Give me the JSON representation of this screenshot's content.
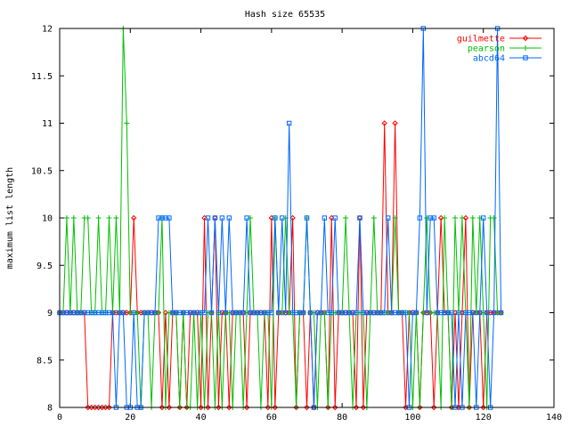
{
  "chart_data": {
    "type": "line",
    "title": "Hash size 65535",
    "xlabel": "",
    "ylabel": "maximum list length",
    "xlim": [
      0,
      140
    ],
    "ylim": [
      8,
      12
    ],
    "xticks": [
      0,
      20,
      40,
      60,
      80,
      100,
      120,
      140
    ],
    "yticks": [
      8,
      8.5,
      9,
      9.5,
      10,
      10.5,
      11,
      11.5,
      12
    ],
    "xtick_labels": [
      "0",
      "20",
      "40",
      "60",
      "80",
      "100",
      "120",
      "140"
    ],
    "ytick_labels": [
      "8",
      "8.5",
      "9",
      "9.5",
      "10",
      "10.5",
      "11",
      "11.5",
      "12"
    ],
    "grid": false,
    "legend_position": "top-right",
    "series": [
      {
        "name": "guilmette",
        "color": "#ff0000",
        "marker": "diamond",
        "values": [
          9,
          9,
          9,
          9,
          9,
          9,
          9,
          9,
          8,
          8,
          8,
          8,
          8,
          8,
          8,
          9,
          9,
          9,
          9,
          9,
          9,
          10,
          9,
          9,
          9,
          9,
          9,
          9,
          9,
          8,
          9,
          8,
          9,
          9,
          8,
          9,
          8,
          9,
          9,
          9,
          8,
          10,
          8,
          9,
          10,
          8,
          9,
          9,
          8,
          9,
          9,
          9,
          9,
          8,
          9,
          9,
          9,
          9,
          9,
          8,
          10,
          8,
          9,
          9,
          9,
          9,
          10,
          8,
          9,
          9,
          8,
          9,
          8,
          9,
          9,
          9,
          8,
          10,
          8,
          9,
          9,
          9,
          9,
          9,
          8,
          10,
          8,
          9,
          9,
          9,
          9,
          9,
          11,
          9,
          9,
          11,
          9,
          9,
          8,
          9,
          9,
          9,
          8,
          9,
          9,
          9,
          8,
          9,
          10,
          9,
          9,
          8,
          9,
          8,
          9,
          10,
          8,
          9,
          9,
          9,
          8,
          9,
          9,
          9,
          9,
          9
        ]
      },
      {
        "name": "pearson",
        "color": "#00c000",
        "marker": "plus",
        "values": [
          9,
          9,
          10,
          9,
          10,
          9,
          9,
          10,
          10,
          9,
          9,
          10,
          9,
          9,
          10,
          9,
          10,
          9,
          12,
          11,
          9,
          9,
          9,
          8,
          9,
          9,
          8,
          9,
          9,
          10,
          8,
          9,
          9,
          9,
          8,
          9,
          8,
          8,
          9,
          8,
          9,
          8,
          9,
          9,
          8,
          9,
          8,
          9,
          9,
          8,
          9,
          9,
          8,
          9,
          10,
          9,
          9,
          8,
          9,
          9,
          8,
          10,
          9,
          9,
          10,
          9,
          9,
          8,
          9,
          9,
          10,
          9,
          9,
          8,
          9,
          9,
          8,
          9,
          9,
          9,
          9,
          10,
          9,
          8,
          9,
          9,
          9,
          8,
          9,
          10,
          9,
          9,
          9,
          9,
          9,
          10,
          9,
          9,
          9,
          9,
          8,
          9,
          8,
          9,
          10,
          9,
          9,
          9,
          8,
          10,
          9,
          8,
          10,
          9,
          10,
          9,
          8,
          10,
          9,
          10,
          9,
          8,
          10,
          10,
          9,
          9
        ]
      },
      {
        "name": "abcd64",
        "color": "#0066ff",
        "marker": "square",
        "values": [
          9,
          9,
          9,
          9,
          9,
          9,
          9,
          9,
          9,
          9,
          9,
          9,
          9,
          9,
          9,
          9,
          8,
          9,
          9,
          8,
          8,
          9,
          8,
          8,
          9,
          9,
          9,
          9,
          10,
          10,
          10,
          10,
          9,
          9,
          9,
          9,
          9,
          9,
          9,
          9,
          9,
          9,
          10,
          9,
          10,
          9,
          10,
          9,
          10,
          9,
          9,
          9,
          9,
          10,
          9,
          9,
          9,
          9,
          9,
          9,
          9,
          10,
          9,
          10,
          9,
          11,
          9,
          9,
          9,
          9,
          10,
          9,
          8,
          9,
          9,
          10,
          9,
          9,
          10,
          9,
          9,
          9,
          9,
          9,
          9,
          10,
          9,
          9,
          9,
          9,
          9,
          9,
          9,
          10,
          9,
          9,
          9,
          9,
          9,
          8,
          9,
          9,
          10,
          12,
          9,
          10,
          10,
          9,
          9,
          9,
          9,
          9,
          8,
          9,
          8,
          9,
          9,
          9,
          8,
          9,
          10,
          9,
          8,
          9,
          12,
          9
        ]
      }
    ]
  }
}
